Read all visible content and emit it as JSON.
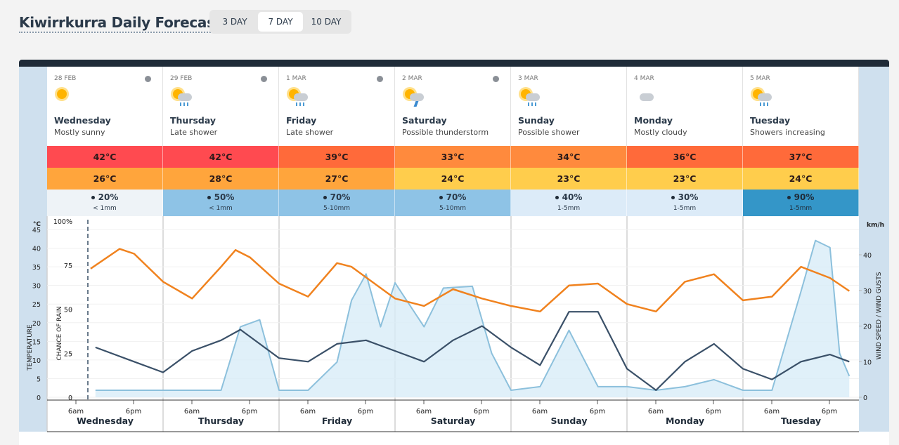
{
  "header": {
    "title": "Kiwirrkurra Daily Forecast"
  },
  "tabs": {
    "items": [
      "3 DAY",
      "7 DAY",
      "10 DAY"
    ],
    "active": 1
  },
  "days": [
    {
      "date": "28 FEB",
      "name": "Wednesday",
      "summary": "Mostly sunny",
      "max": "42°C",
      "min": "26°C",
      "rain_chance": "20%",
      "rain_amount": "< 1mm",
      "max_color": "#ff4a50",
      "min_color": "#ffa53c",
      "rain_color": "#eef3f7",
      "rain_text_color": "#2b3a4a",
      "icon": "sun"
    },
    {
      "date": "29 FEB",
      "name": "Thursday",
      "summary": "Late shower",
      "max": "42°C",
      "min": "28°C",
      "rain_chance": "50%",
      "rain_amount": "< 1mm",
      "max_color": "#ff4a50",
      "min_color": "#ffa53c",
      "rain_color": "#8ec3e6",
      "rain_text_color": "#2b3a4a",
      "icon": "shower"
    },
    {
      "date": "1 MAR",
      "name": "Friday",
      "summary": "Late shower",
      "max": "39°C",
      "min": "27°C",
      "rain_chance": "70%",
      "rain_amount": "5-10mm",
      "max_color": "#ff6a3a",
      "min_color": "#ffa53c",
      "rain_color": "#8ec3e6",
      "rain_text_color": "#2b3a4a",
      "icon": "shower"
    },
    {
      "date": "2 MAR",
      "name": "Saturday",
      "summary": "Possible thunderstorm",
      "max": "33°C",
      "min": "24°C",
      "rain_chance": "70%",
      "rain_amount": "5-10mm",
      "max_color": "#ff8a3d",
      "min_color": "#ffcd4c",
      "rain_color": "#8ec3e6",
      "rain_text_color": "#2b3a4a",
      "icon": "storm"
    },
    {
      "date": "3 MAR",
      "name": "Sunday",
      "summary": "Possible shower",
      "max": "34°C",
      "min": "23°C",
      "rain_chance": "40%",
      "rain_amount": "1-5mm",
      "max_color": "#ff8a3d",
      "min_color": "#ffcd4c",
      "rain_color": "#dcebf8",
      "rain_text_color": "#2b3a4a",
      "icon": "shower"
    },
    {
      "date": "4 MAR",
      "name": "Monday",
      "summary": "Mostly cloudy",
      "max": "36°C",
      "min": "23°C",
      "rain_chance": "30%",
      "rain_amount": "1-5mm",
      "max_color": "#ff6a3a",
      "min_color": "#ffcd4c",
      "rain_color": "#dcebf8",
      "rain_text_color": "#2b3a4a",
      "icon": "cloud"
    },
    {
      "date": "5 MAR",
      "name": "Tuesday",
      "summary": "Showers increasing",
      "max": "37°C",
      "min": "24°C",
      "rain_chance": "90%",
      "rain_amount": "1-5mm",
      "max_color": "#ff6a3a",
      "min_color": "#ffcd4c",
      "rain_color": "#3496c8",
      "rain_text_color": "#1f2b38",
      "icon": "shower"
    }
  ],
  "chart": {
    "temp_unit": "°C",
    "temp_axis_label": "TEMPERATURE",
    "rain_axis_label": "CHANCE OF RAIN",
    "wind_unit": "km/h",
    "wind_axis_label": "WIND SPEED / WIND GUSTS",
    "time_labels": [
      "6am",
      "6pm"
    ],
    "temp_ylim": [
      0,
      45
    ],
    "temp_yticks": [
      0,
      5,
      10,
      15,
      20,
      25,
      30,
      35,
      40,
      45
    ],
    "rain_ylim": [
      0,
      100
    ],
    "rain_yticks": [
      0,
      25,
      50,
      75,
      {
        "value": 100,
        "label": "100%"
      }
    ],
    "wind_ylim": [
      0,
      40
    ],
    "wind_yticks": [
      0,
      10,
      20,
      30,
      40
    ],
    "temperature": {
      "color": "#f0821e",
      "x": [
        9,
        15,
        18,
        24,
        30,
        36,
        39,
        42,
        48,
        54,
        60,
        63,
        72,
        78,
        84,
        90,
        96,
        102,
        108,
        114,
        120,
        126,
        132,
        138,
        144,
        150,
        156,
        162,
        166
      ],
      "values": [
        34.5,
        39.8,
        38.5,
        31,
        26.5,
        35,
        39.5,
        37.5,
        30.5,
        27,
        36,
        35,
        26.5,
        24.5,
        29,
        26.5,
        24.5,
        23,
        30,
        30.5,
        25,
        23,
        31,
        33,
        26,
        27,
        35,
        32,
        28.5
      ]
    },
    "rain": {
      "color": "#8cc0dc",
      "fill": "#d8ecf8",
      "x": [
        10,
        36,
        40,
        44,
        48,
        54,
        60,
        63,
        66,
        69,
        72,
        78,
        82,
        88,
        92,
        96,
        102,
        108,
        114,
        120,
        126,
        132,
        138,
        144,
        150,
        156,
        159,
        162,
        164,
        166
      ],
      "values": [
        4,
        4,
        40,
        44,
        4,
        4,
        20,
        55,
        70,
        40,
        65,
        40,
        62,
        63,
        25,
        4,
        6,
        38,
        6,
        6,
        4,
        6,
        10,
        4,
        4,
        60,
        89,
        85,
        25,
        12
      ]
    },
    "wind": {
      "color": "#3a5068",
      "x": [
        10,
        18,
        24,
        30,
        36,
        40,
        44,
        48,
        54,
        60,
        66,
        72,
        78,
        84,
        90,
        96,
        102,
        108,
        114,
        117,
        120,
        126,
        132,
        138,
        144,
        150,
        156,
        162,
        166
      ],
      "values": [
        14,
        10,
        7,
        13,
        16,
        19,
        15,
        11,
        10,
        15,
        16,
        13,
        10,
        16,
        20,
        14,
        9,
        24,
        24,
        16,
        8,
        2,
        10,
        15,
        8,
        5,
        10,
        12,
        10
      ]
    }
  }
}
